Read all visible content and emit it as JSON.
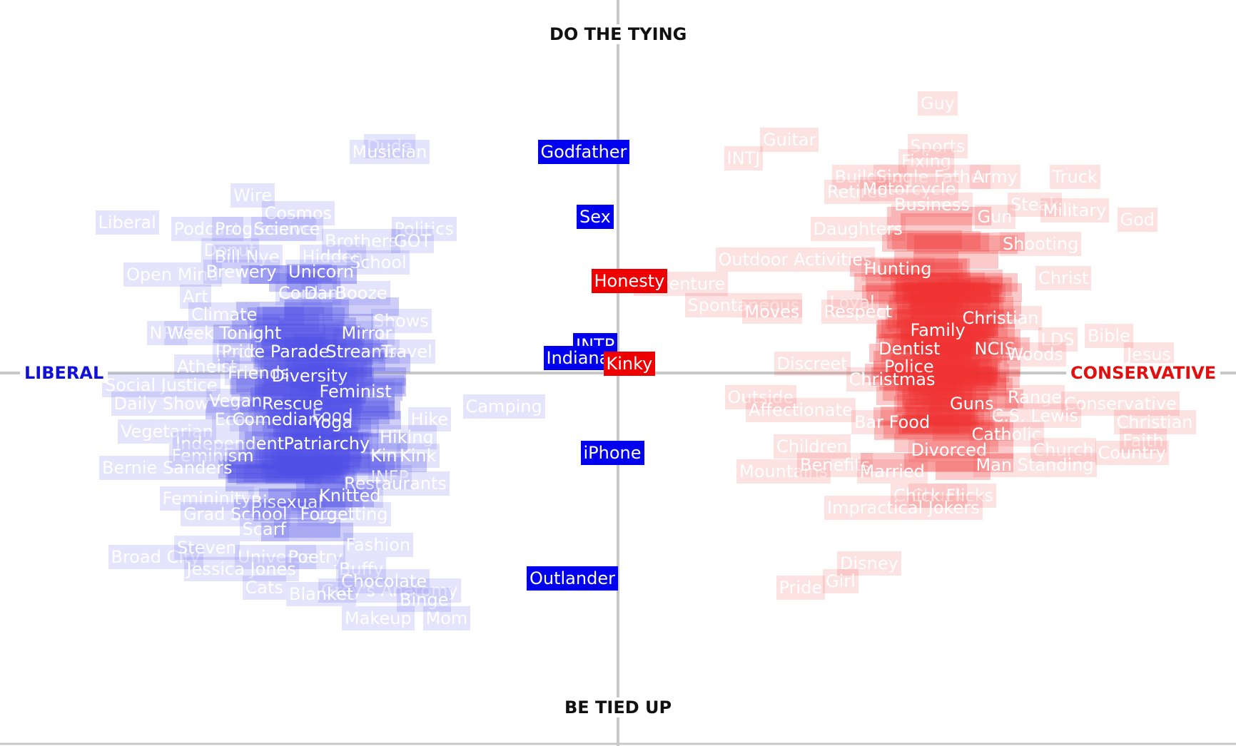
{
  "chart_data": {
    "type": "scatter",
    "axes": {
      "top": "DO THE TYING",
      "bottom": "BE TIED UP",
      "left": "LIBERAL",
      "right": "CONSERVATIVE"
    },
    "xlim": [
      -1,
      1
    ],
    "ylim": [
      -1,
      1
    ],
    "grid": false,
    "colors": {
      "liberal": "#0000ee",
      "conservative": "#ee0000"
    },
    "highlighted": [
      {
        "label": "Godfather",
        "x": -0.06,
        "y": 0.72,
        "side": "liberal"
      },
      {
        "label": "Sex",
        "x": -0.04,
        "y": 0.51,
        "side": "liberal"
      },
      {
        "label": "Honesty",
        "x": 0.02,
        "y": 0.3,
        "side": "conservative"
      },
      {
        "label": "INTP",
        "x": -0.04,
        "y": 0.09,
        "side": "liberal"
      },
      {
        "label": "Indiana",
        "x": -0.07,
        "y": 0.05,
        "side": "liberal"
      },
      {
        "label": "Kinky",
        "x": 0.02,
        "y": 0.03,
        "side": "conservative"
      },
      {
        "label": "iPhone",
        "x": -0.01,
        "y": -0.26,
        "side": "liberal"
      },
      {
        "label": "Outlander",
        "x": -0.08,
        "y": -0.67,
        "side": "liberal"
      }
    ],
    "liberal_points": [
      {
        "label": "Dude",
        "x": -0.4,
        "y": 0.74
      },
      {
        "label": "Musician",
        "x": -0.4,
        "y": 0.72
      },
      {
        "label": "Wire",
        "x": -0.64,
        "y": 0.58
      },
      {
        "label": "Liberal",
        "x": -0.86,
        "y": 0.49
      },
      {
        "label": "Podcast",
        "x": -0.72,
        "y": 0.47
      },
      {
        "label": "Progressive",
        "x": -0.62,
        "y": 0.47
      },
      {
        "label": "Cosmos",
        "x": -0.56,
        "y": 0.52
      },
      {
        "label": "Politics",
        "x": -0.34,
        "y": 0.47
      },
      {
        "label": "Science",
        "x": -0.58,
        "y": 0.47
      },
      {
        "label": "Brothers",
        "x": -0.45,
        "y": 0.43
      },
      {
        "label": "GOT",
        "x": -0.36,
        "y": 0.43
      },
      {
        "label": "Donut",
        "x": -0.68,
        "y": 0.4
      },
      {
        "label": "Bill Nye",
        "x": -0.65,
        "y": 0.38
      },
      {
        "label": "Hidden",
        "x": -0.5,
        "y": 0.38
      },
      {
        "label": "School",
        "x": -0.42,
        "y": 0.36
      },
      {
        "label": "Open Mind",
        "x": -0.78,
        "y": 0.32
      },
      {
        "label": "Brewery",
        "x": -0.66,
        "y": 0.33
      },
      {
        "label": "Unicorn",
        "x": -0.52,
        "y": 0.33
      },
      {
        "label": "Art",
        "x": -0.74,
        "y": 0.25
      },
      {
        "label": "Cord",
        "x": -0.56,
        "y": 0.26
      },
      {
        "label": "Dan",
        "x": -0.52,
        "y": 0.26
      },
      {
        "label": "Booze",
        "x": -0.45,
        "y": 0.26
      },
      {
        "label": "Climate",
        "x": -0.69,
        "y": 0.19
      },
      {
        "label": "Shows",
        "x": -0.38,
        "y": 0.17
      },
      {
        "label": "NPR",
        "x": -0.79,
        "y": 0.13
      },
      {
        "label": "Week Tonight",
        "x": -0.69,
        "y": 0.13
      },
      {
        "label": "Mirror",
        "x": -0.44,
        "y": 0.13
      },
      {
        "label": "Rock",
        "x": -0.67,
        "y": 0.07
      },
      {
        "label": "Pride Parade",
        "x": -0.6,
        "y": 0.07
      },
      {
        "label": "Streams",
        "x": -0.45,
        "y": 0.07
      },
      {
        "label": "Travel",
        "x": -0.37,
        "y": 0.07
      },
      {
        "label": "Atheist",
        "x": -0.72,
        "y": 0.02
      },
      {
        "label": "Friends",
        "x": -0.63,
        "y": 0.0
      },
      {
        "label": "Diversity",
        "x": -0.54,
        "y": -0.01
      },
      {
        "label": "Social Justice",
        "x": -0.8,
        "y": -0.04
      },
      {
        "label": "Feminist",
        "x": -0.46,
        "y": -0.06
      },
      {
        "label": "Daily Show",
        "x": -0.8,
        "y": -0.1
      },
      {
        "label": "Vegan",
        "x": -0.67,
        "y": -0.09
      },
      {
        "label": "Rescue",
        "x": -0.57,
        "y": -0.1
      },
      {
        "label": "Food",
        "x": -0.5,
        "y": -0.14
      },
      {
        "label": "Eco",
        "x": -0.68,
        "y": -0.15
      },
      {
        "label": "Comedian",
        "x": -0.6,
        "y": -0.15
      },
      {
        "label": "Yoga",
        "x": -0.5,
        "y": -0.16
      },
      {
        "label": "Camping",
        "x": -0.2,
        "y": -0.11
      },
      {
        "label": "Hike",
        "x": -0.33,
        "y": -0.15
      },
      {
        "label": "Vegetarian",
        "x": -0.79,
        "y": -0.19
      },
      {
        "label": "Independent",
        "x": -0.68,
        "y": -0.23
      },
      {
        "label": "Patriarchy",
        "x": -0.51,
        "y": -0.23
      },
      {
        "label": "Hiking",
        "x": -0.37,
        "y": -0.21
      },
      {
        "label": "Feminism",
        "x": -0.71,
        "y": -0.27
      },
      {
        "label": "Kin",
        "x": -0.41,
        "y": -0.27
      },
      {
        "label": "Kink",
        "x": -0.35,
        "y": -0.27
      },
      {
        "label": "Bernie Sanders",
        "x": -0.79,
        "y": -0.31
      },
      {
        "label": "INFP",
        "x": -0.4,
        "y": -0.34
      },
      {
        "label": "Restaurants",
        "x": -0.39,
        "y": -0.36
      },
      {
        "label": "Femininity",
        "x": -0.72,
        "y": -0.41
      },
      {
        "label": "Bisexual",
        "x": -0.58,
        "y": -0.42
      },
      {
        "label": "Knitted",
        "x": -0.47,
        "y": -0.4
      },
      {
        "label": "Grad School",
        "x": -0.67,
        "y": -0.46
      },
      {
        "label": "Forgetting",
        "x": -0.48,
        "y": -0.46
      },
      {
        "label": "Scarf",
        "x": -0.62,
        "y": -0.51
      },
      {
        "label": "Broad City",
        "x": -0.81,
        "y": -0.6
      },
      {
        "label": "Steven",
        "x": -0.72,
        "y": -0.57
      },
      {
        "label": "Universe",
        "x": -0.6,
        "y": -0.6
      },
      {
        "label": "Poetry",
        "x": -0.53,
        "y": -0.6
      },
      {
        "label": "Fashion",
        "x": -0.42,
        "y": -0.56
      },
      {
        "label": "Jessica Jones",
        "x": -0.66,
        "y": -0.64
      },
      {
        "label": "Cats",
        "x": -0.62,
        "y": -0.7
      },
      {
        "label": "Buffy",
        "x": -0.45,
        "y": -0.64
      },
      {
        "label": "Grey's Anatomy",
        "x": -0.4,
        "y": -0.71
      },
      {
        "label": "Chocolate",
        "x": -0.41,
        "y": -0.68
      },
      {
        "label": "Blanket",
        "x": -0.52,
        "y": -0.72
      },
      {
        "label": "Binge",
        "x": -0.34,
        "y": -0.74
      },
      {
        "label": "Mom",
        "x": -0.3,
        "y": -0.8
      },
      {
        "label": "Makeup",
        "x": -0.42,
        "y": -0.8
      }
    ],
    "conservative_points": [
      {
        "label": "Guy",
        "x": 0.56,
        "y": 0.88
      },
      {
        "label": "Guitar",
        "x": 0.3,
        "y": 0.76
      },
      {
        "label": "INTJ",
        "x": 0.22,
        "y": 0.7
      },
      {
        "label": "Sports",
        "x": 0.56,
        "y": 0.74
      },
      {
        "label": "Fixing",
        "x": 0.54,
        "y": 0.69
      },
      {
        "label": "Building",
        "x": 0.44,
        "y": 0.64
      },
      {
        "label": "Single Father",
        "x": 0.55,
        "y": 0.64
      },
      {
        "label": "Army",
        "x": 0.66,
        "y": 0.64
      },
      {
        "label": "Truck",
        "x": 0.8,
        "y": 0.64
      },
      {
        "label": "Retired",
        "x": 0.42,
        "y": 0.59
      },
      {
        "label": "Motorcycle",
        "x": 0.51,
        "y": 0.6
      },
      {
        "label": "Business",
        "x": 0.55,
        "y": 0.55
      },
      {
        "label": "Steak",
        "x": 0.73,
        "y": 0.55
      },
      {
        "label": "Military",
        "x": 0.8,
        "y": 0.53
      },
      {
        "label": "Gun",
        "x": 0.66,
        "y": 0.51
      },
      {
        "label": "God",
        "x": 0.91,
        "y": 0.5
      },
      {
        "label": "Daughters",
        "x": 0.42,
        "y": 0.47
      },
      {
        "label": "Outdoor Activities",
        "x": 0.31,
        "y": 0.37
      },
      {
        "label": "Hunting",
        "x": 0.49,
        "y": 0.34
      },
      {
        "label": "Shooting",
        "x": 0.74,
        "y": 0.42
      },
      {
        "label": "Christ",
        "x": 0.78,
        "y": 0.31
      },
      {
        "label": "Adventure",
        "x": 0.11,
        "y": 0.29
      },
      {
        "label": "Spontaneous",
        "x": 0.22,
        "y": 0.22
      },
      {
        "label": "Moves",
        "x": 0.27,
        "y": 0.2
      },
      {
        "label": "Loyal",
        "x": 0.41,
        "y": 0.23
      },
      {
        "label": "Respect",
        "x": 0.42,
        "y": 0.2
      },
      {
        "label": "Christian",
        "x": 0.67,
        "y": 0.18
      },
      {
        "label": "Family",
        "x": 0.56,
        "y": 0.14
      },
      {
        "label": "Bible",
        "x": 0.86,
        "y": 0.12
      },
      {
        "label": "Jesus",
        "x": 0.93,
        "y": 0.06
      },
      {
        "label": "LDS",
        "x": 0.77,
        "y": 0.11
      },
      {
        "label": "NCIS",
        "x": 0.66,
        "y": 0.08
      },
      {
        "label": "Woods",
        "x": 0.73,
        "y": 0.06
      },
      {
        "label": "Dentist",
        "x": 0.51,
        "y": 0.08
      },
      {
        "label": "Discreet",
        "x": 0.34,
        "y": 0.03
      },
      {
        "label": "Police",
        "x": 0.51,
        "y": 0.02
      },
      {
        "label": "Christmas",
        "x": 0.48,
        "y": -0.02
      },
      {
        "label": "Outside",
        "x": 0.25,
        "y": -0.08
      },
      {
        "label": "Affectionate",
        "x": 0.32,
        "y": -0.12
      },
      {
        "label": "Range",
        "x": 0.73,
        "y": -0.08
      },
      {
        "label": "Conservative",
        "x": 0.88,
        "y": -0.1
      },
      {
        "label": "C.S. Lewis",
        "x": 0.73,
        "y": -0.14
      },
      {
        "label": "Guns",
        "x": 0.62,
        "y": -0.1
      },
      {
        "label": "Bar Food",
        "x": 0.48,
        "y": -0.16
      },
      {
        "label": "Christian",
        "x": 0.94,
        "y": -0.16
      },
      {
        "label": "Catholic",
        "x": 0.68,
        "y": -0.2
      },
      {
        "label": "Faith",
        "x": 0.92,
        "y": -0.22
      },
      {
        "label": "Children",
        "x": 0.34,
        "y": -0.24
      },
      {
        "label": "Church",
        "x": 0.78,
        "y": -0.25
      },
      {
        "label": "Country",
        "x": 0.9,
        "y": -0.26
      },
      {
        "label": "Divorced",
        "x": 0.58,
        "y": -0.25
      },
      {
        "label": "Mountains",
        "x": 0.29,
        "y": -0.32
      },
      {
        "label": "Benefits",
        "x": 0.38,
        "y": -0.3
      },
      {
        "label": "Married",
        "x": 0.48,
        "y": -0.32
      },
      {
        "label": "Man Standing",
        "x": 0.73,
        "y": -0.3
      },
      {
        "label": "Chuck",
        "x": 0.56,
        "y": -0.4
      },
      {
        "label": "Chick Flicks",
        "x": 0.57,
        "y": -0.4
      },
      {
        "label": "Impractical Jokers",
        "x": 0.5,
        "y": -0.44
      },
      {
        "label": "Disney",
        "x": 0.44,
        "y": -0.62
      },
      {
        "label": "Girl",
        "x": 0.39,
        "y": -0.68
      },
      {
        "label": "Pride",
        "x": 0.32,
        "y": -0.7
      }
    ]
  }
}
